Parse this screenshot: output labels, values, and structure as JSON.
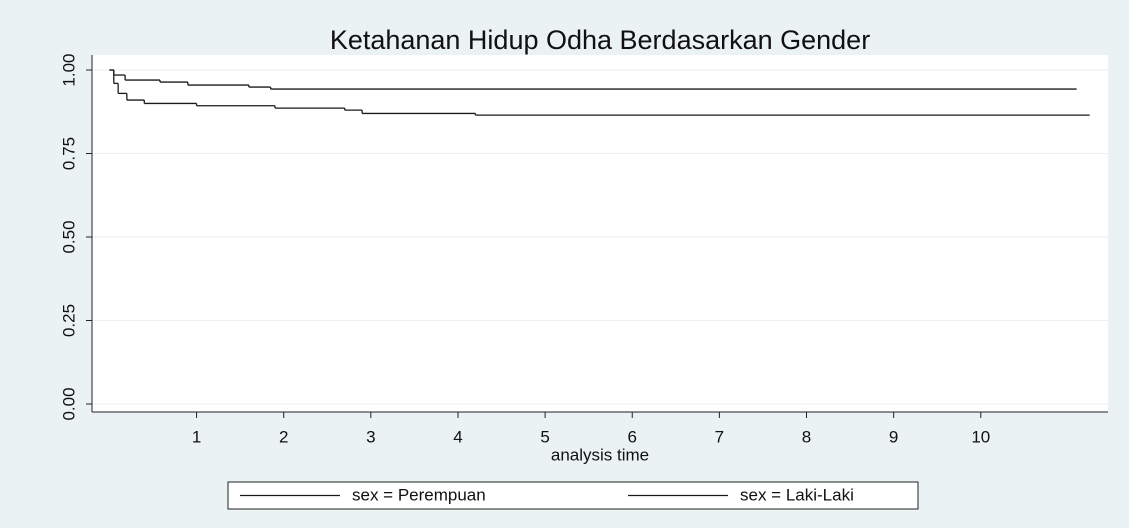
{
  "chart_data": {
    "type": "line",
    "drawstyle": "steps-post",
    "title": "Ketahanan Hidup Odha Berdasarkan Gender",
    "xlabel": "analysis time",
    "series": [
      {
        "name": "sex = Perempuan",
        "color": "#1a1a1a",
        "x": [
          0,
          0.05,
          0.18,
          0.58,
          0.9,
          1.6,
          1.85,
          11.1
        ],
        "values": [
          1,
          0.985,
          0.97,
          0.964,
          0.955,
          0.949,
          0.943,
          0.943
        ]
      },
      {
        "name": "sex = Laki-Laki",
        "color": "#1a1a1a",
        "x": [
          0,
          0.05,
          0.1,
          0.2,
          0.4,
          1.0,
          1.9,
          2.7,
          2.9,
          4.2,
          11.25
        ],
        "values": [
          1,
          0.96,
          0.93,
          0.91,
          0.9,
          0.893,
          0.886,
          0.88,
          0.87,
          0.865,
          0.865
        ]
      }
    ],
    "xlim": [
      -0.2,
      11.46
    ],
    "xticks": [
      1,
      2,
      3,
      4,
      5,
      6,
      7,
      8,
      9,
      10
    ],
    "ylim": [
      -0.024,
      1.045
    ],
    "yticks": [
      {
        "value": 0,
        "label": "0.00"
      },
      0.25,
      {
        "value": 0.5,
        "label": "0.50"
      },
      0.75,
      {
        "value": 1,
        "label": "1.00"
      }
    ],
    "grid": true
  }
}
